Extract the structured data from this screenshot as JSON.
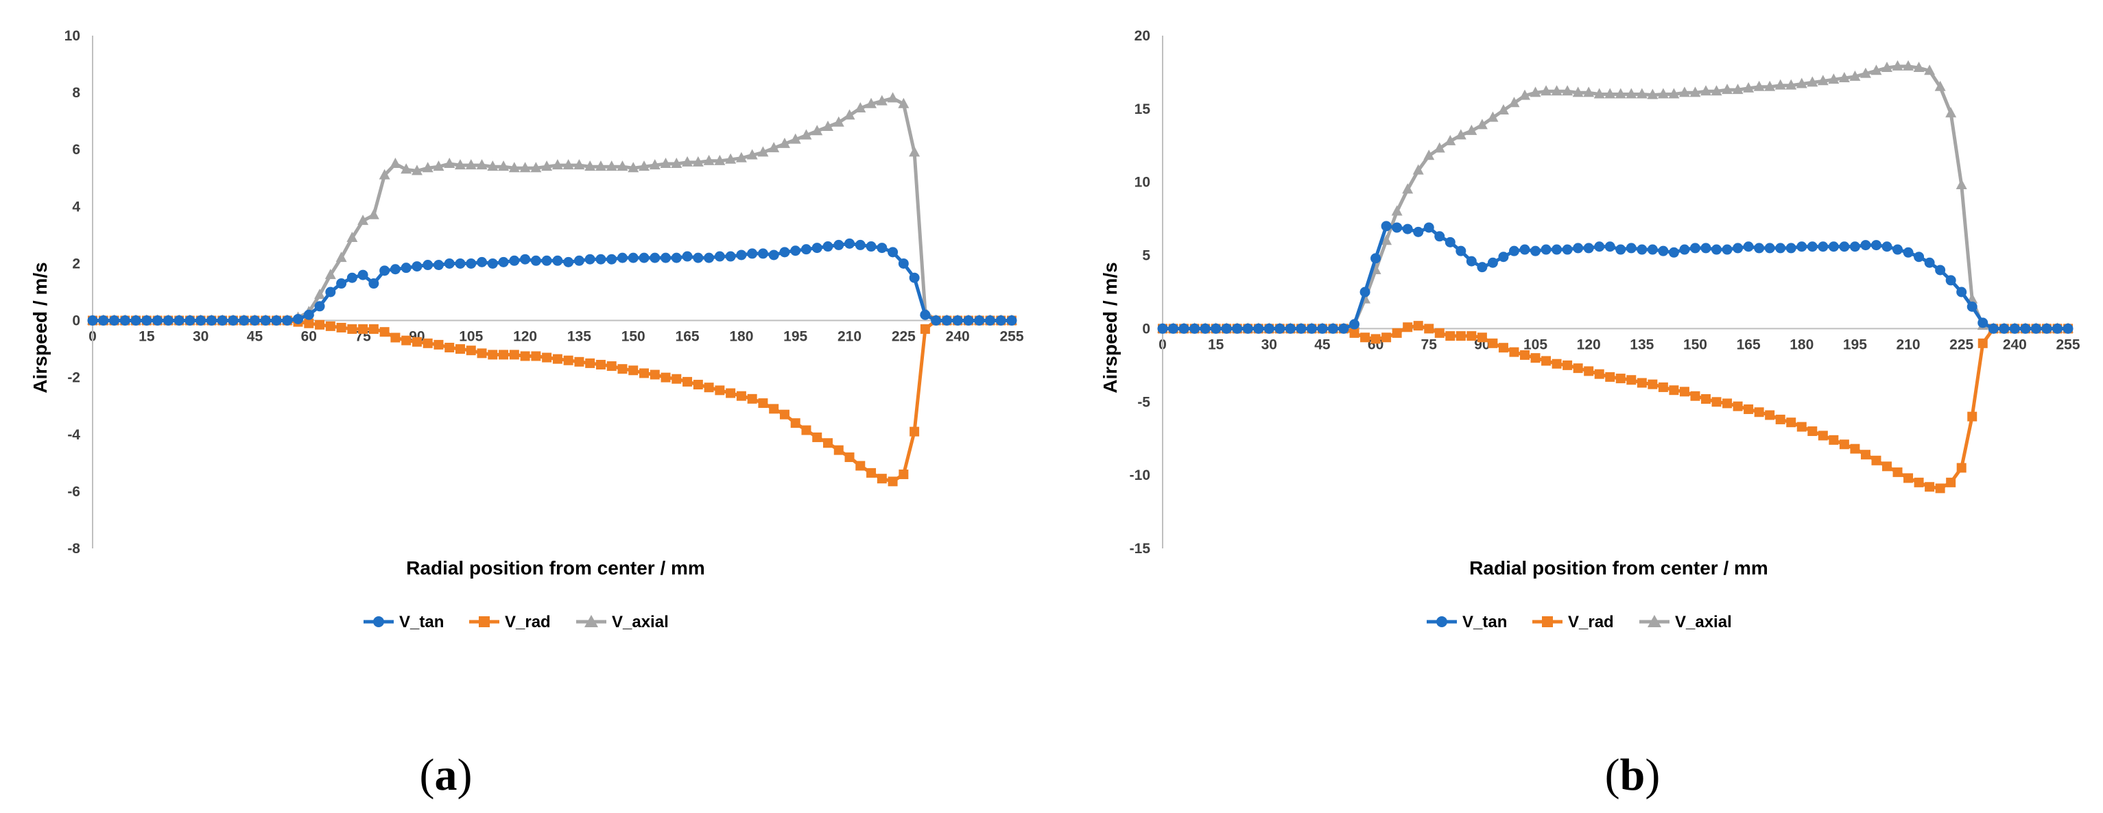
{
  "chart_data": [
    {
      "type": "line",
      "panel": "a",
      "panel_label": {
        "open": "(",
        "letter": "a",
        "close": ")"
      },
      "xlabel": "Radial position from center / mm",
      "ylabel": "Airspeed / m/s",
      "xlim": [
        0,
        255
      ],
      "ylim": [
        -8,
        10
      ],
      "xticks": [
        "0",
        "15",
        "30",
        "45",
        "60",
        "75",
        "90",
        "105",
        "120",
        "135",
        "150",
        "165",
        "180",
        "195",
        "210",
        "225",
        "240",
        "255"
      ],
      "yticks": [
        "-8",
        "-6",
        "-4",
        "-2",
        "0",
        "2",
        "4",
        "6",
        "8",
        "10"
      ],
      "grid": false,
      "legend": "bottom-center",
      "series": [
        {
          "name": "V_tan",
          "color": "#1f6fc4",
          "marker": "circle",
          "x": [
            0,
            3,
            6,
            9,
            12,
            15,
            18,
            21,
            24,
            27,
            30,
            33,
            36,
            39,
            42,
            45,
            48,
            51,
            54,
            57,
            60,
            63,
            66,
            69,
            72,
            75,
            78,
            81,
            84,
            87,
            90,
            93,
            96,
            99,
            102,
            105,
            108,
            111,
            114,
            117,
            120,
            123,
            126,
            129,
            132,
            135,
            138,
            141,
            144,
            147,
            150,
            153,
            156,
            159,
            162,
            165,
            168,
            171,
            174,
            177,
            180,
            183,
            186,
            189,
            192,
            195,
            198,
            201,
            204,
            207,
            210,
            213,
            216,
            219,
            222,
            225,
            228,
            231,
            234,
            237,
            240,
            243,
            246,
            249,
            252,
            255
          ],
          "y": [
            0,
            0,
            0,
            0,
            0,
            0,
            0,
            0,
            0,
            0,
            0,
            0,
            0,
            0,
            0,
            0,
            0,
            0,
            0,
            0.05,
            0.2,
            0.5,
            1.0,
            1.3,
            1.5,
            1.6,
            1.3,
            1.75,
            1.8,
            1.85,
            1.9,
            1.95,
            1.95,
            2.0,
            2.0,
            2.0,
            2.05,
            2.0,
            2.05,
            2.1,
            2.15,
            2.1,
            2.1,
            2.1,
            2.05,
            2.1,
            2.15,
            2.15,
            2.15,
            2.2,
            2.2,
            2.2,
            2.2,
            2.2,
            2.2,
            2.25,
            2.2,
            2.2,
            2.25,
            2.25,
            2.3,
            2.35,
            2.35,
            2.3,
            2.4,
            2.45,
            2.5,
            2.55,
            2.6,
            2.65,
            2.7,
            2.65,
            2.6,
            2.55,
            2.4,
            2.0,
            1.5,
            0.2,
            0,
            0,
            0,
            0,
            0,
            0,
            0,
            0
          ]
        },
        {
          "name": "V_rad",
          "color": "#f07f22",
          "marker": "square",
          "x": [
            0,
            3,
            6,
            9,
            12,
            15,
            18,
            21,
            24,
            27,
            30,
            33,
            36,
            39,
            42,
            45,
            48,
            51,
            54,
            57,
            60,
            63,
            66,
            69,
            72,
            75,
            78,
            81,
            84,
            87,
            90,
            93,
            96,
            99,
            102,
            105,
            108,
            111,
            114,
            117,
            120,
            123,
            126,
            129,
            132,
            135,
            138,
            141,
            144,
            147,
            150,
            153,
            156,
            159,
            162,
            165,
            168,
            171,
            174,
            177,
            180,
            183,
            186,
            189,
            192,
            195,
            198,
            201,
            204,
            207,
            210,
            213,
            216,
            219,
            222,
            225,
            228,
            231,
            234,
            237,
            240,
            243,
            246,
            249,
            252,
            255
          ],
          "y": [
            0,
            0,
            0,
            0,
            0,
            0,
            0,
            0,
            0,
            0,
            0,
            0,
            0,
            0,
            0,
            0,
            0,
            0,
            0,
            -0.05,
            -0.1,
            -0.15,
            -0.2,
            -0.25,
            -0.3,
            -0.3,
            -0.3,
            -0.4,
            -0.6,
            -0.7,
            -0.75,
            -0.8,
            -0.85,
            -0.95,
            -1.0,
            -1.05,
            -1.15,
            -1.2,
            -1.2,
            -1.2,
            -1.25,
            -1.25,
            -1.3,
            -1.35,
            -1.4,
            -1.45,
            -1.5,
            -1.55,
            -1.6,
            -1.7,
            -1.75,
            -1.85,
            -1.9,
            -2.0,
            -2.05,
            -2.15,
            -2.25,
            -2.35,
            -2.45,
            -2.55,
            -2.65,
            -2.75,
            -2.9,
            -3.1,
            -3.3,
            -3.6,
            -3.85,
            -4.1,
            -4.3,
            -4.55,
            -4.8,
            -5.1,
            -5.35,
            -5.55,
            -5.65,
            -5.4,
            -3.9,
            -0.3,
            0,
            0,
            0,
            0,
            0,
            0,
            0,
            0
          ]
        },
        {
          "name": "V_axial",
          "color": "#a5a5a5",
          "marker": "triangle",
          "x": [
            0,
            3,
            6,
            9,
            12,
            15,
            18,
            21,
            24,
            27,
            30,
            33,
            36,
            39,
            42,
            45,
            48,
            51,
            54,
            57,
            60,
            63,
            66,
            69,
            72,
            75,
            78,
            81,
            84,
            87,
            90,
            93,
            96,
            99,
            102,
            105,
            108,
            111,
            114,
            117,
            120,
            123,
            126,
            129,
            132,
            135,
            138,
            141,
            144,
            147,
            150,
            153,
            156,
            159,
            162,
            165,
            168,
            171,
            174,
            177,
            180,
            183,
            186,
            189,
            192,
            195,
            198,
            201,
            204,
            207,
            210,
            213,
            216,
            219,
            222,
            225,
            228,
            231,
            234,
            237,
            240,
            243,
            246,
            249,
            252,
            255
          ],
          "y": [
            0,
            0,
            0,
            0,
            0,
            0,
            0,
            0,
            0,
            0,
            0,
            0,
            0,
            0,
            0,
            0,
            0,
            0,
            0,
            0.1,
            0.3,
            0.9,
            1.6,
            2.2,
            2.9,
            3.5,
            3.7,
            5.1,
            5.5,
            5.3,
            5.25,
            5.35,
            5.4,
            5.5,
            5.45,
            5.45,
            5.45,
            5.4,
            5.4,
            5.35,
            5.35,
            5.35,
            5.4,
            5.45,
            5.45,
            5.45,
            5.4,
            5.4,
            5.4,
            5.4,
            5.35,
            5.4,
            5.45,
            5.5,
            5.5,
            5.55,
            5.55,
            5.6,
            5.6,
            5.65,
            5.7,
            5.8,
            5.9,
            6.05,
            6.2,
            6.35,
            6.5,
            6.65,
            6.8,
            6.95,
            7.2,
            7.45,
            7.6,
            7.7,
            7.8,
            7.6,
            5.9,
            0.3,
            0,
            0,
            0,
            0,
            0,
            0,
            0,
            0
          ]
        }
      ]
    },
    {
      "type": "line",
      "panel": "b",
      "panel_label": {
        "open": "(",
        "letter": "b",
        "close": ")"
      },
      "xlabel": "Radial position from center / mm",
      "ylabel": "Airspeed / m/s",
      "xlim": [
        0,
        255
      ],
      "ylim": [
        -15,
        20
      ],
      "xticks": [
        "0",
        "15",
        "30",
        "45",
        "60",
        "75",
        "90",
        "105",
        "120",
        "135",
        "150",
        "165",
        "180",
        "195",
        "210",
        "225",
        "240",
        "255"
      ],
      "yticks": [
        "-15",
        "-10",
        "-5",
        "0",
        "5",
        "10",
        "15",
        "20"
      ],
      "grid": false,
      "legend": "bottom-center",
      "series": [
        {
          "name": "V_tan",
          "color": "#1f6fc4",
          "marker": "circle",
          "x": [
            0,
            3,
            6,
            9,
            12,
            15,
            18,
            21,
            24,
            27,
            30,
            33,
            36,
            39,
            42,
            45,
            48,
            51,
            54,
            57,
            60,
            63,
            66,
            69,
            72,
            75,
            78,
            81,
            84,
            87,
            90,
            93,
            96,
            99,
            102,
            105,
            108,
            111,
            114,
            117,
            120,
            123,
            126,
            129,
            132,
            135,
            138,
            141,
            144,
            147,
            150,
            153,
            156,
            159,
            162,
            165,
            168,
            171,
            174,
            177,
            180,
            183,
            186,
            189,
            192,
            195,
            198,
            201,
            204,
            207,
            210,
            213,
            216,
            219,
            222,
            225,
            228,
            231,
            234,
            237,
            240,
            243,
            246,
            249,
            252,
            255
          ],
          "y": [
            0,
            0,
            0,
            0,
            0,
            0,
            0,
            0,
            0,
            0,
            0,
            0,
            0,
            0,
            0,
            0,
            0,
            0,
            0.3,
            2.5,
            4.8,
            7.0,
            6.9,
            6.8,
            6.6,
            6.9,
            6.3,
            5.9,
            5.3,
            4.6,
            4.2,
            4.5,
            4.9,
            5.3,
            5.4,
            5.3,
            5.4,
            5.4,
            5.4,
            5.5,
            5.5,
            5.6,
            5.6,
            5.4,
            5.5,
            5.4,
            5.4,
            5.3,
            5.2,
            5.4,
            5.5,
            5.5,
            5.4,
            5.4,
            5.5,
            5.6,
            5.5,
            5.5,
            5.5,
            5.5,
            5.6,
            5.6,
            5.6,
            5.6,
            5.6,
            5.6,
            5.7,
            5.7,
            5.6,
            5.4,
            5.2,
            4.9,
            4.5,
            4.0,
            3.3,
            2.5,
            1.5,
            0.4,
            0,
            0,
            0,
            0,
            0,
            0,
            0,
            0
          ]
        },
        {
          "name": "V_rad",
          "color": "#f07f22",
          "marker": "square",
          "x": [
            0,
            3,
            6,
            9,
            12,
            15,
            18,
            21,
            24,
            27,
            30,
            33,
            36,
            39,
            42,
            45,
            48,
            51,
            54,
            57,
            60,
            63,
            66,
            69,
            72,
            75,
            78,
            81,
            84,
            87,
            90,
            93,
            96,
            99,
            102,
            105,
            108,
            111,
            114,
            117,
            120,
            123,
            126,
            129,
            132,
            135,
            138,
            141,
            144,
            147,
            150,
            153,
            156,
            159,
            162,
            165,
            168,
            171,
            174,
            177,
            180,
            183,
            186,
            189,
            192,
            195,
            198,
            201,
            204,
            207,
            210,
            213,
            216,
            219,
            222,
            225,
            228,
            231,
            234,
            237,
            240,
            243,
            246,
            249,
            252,
            255
          ],
          "y": [
            0,
            0,
            0,
            0,
            0,
            0,
            0,
            0,
            0,
            0,
            0,
            0,
            0,
            0,
            0,
            0,
            0,
            0,
            -0.3,
            -0.6,
            -0.7,
            -0.6,
            -0.3,
            0.1,
            0.2,
            0,
            -0.3,
            -0.5,
            -0.5,
            -0.5,
            -0.6,
            -1.0,
            -1.3,
            -1.6,
            -1.8,
            -2.0,
            -2.2,
            -2.4,
            -2.5,
            -2.7,
            -2.9,
            -3.1,
            -3.3,
            -3.4,
            -3.5,
            -3.7,
            -3.8,
            -4.0,
            -4.2,
            -4.3,
            -4.6,
            -4.8,
            -5.0,
            -5.1,
            -5.3,
            -5.5,
            -5.7,
            -5.9,
            -6.2,
            -6.4,
            -6.7,
            -7.0,
            -7.3,
            -7.6,
            -7.9,
            -8.2,
            -8.6,
            -9.0,
            -9.4,
            -9.8,
            -10.2,
            -10.5,
            -10.8,
            -10.9,
            -10.5,
            -9.5,
            -6.0,
            -1.0,
            0,
            0,
            0,
            0,
            0,
            0,
            0,
            0
          ]
        },
        {
          "name": "V_axial",
          "color": "#a5a5a5",
          "marker": "triangle",
          "x": [
            0,
            3,
            6,
            9,
            12,
            15,
            18,
            21,
            24,
            27,
            30,
            33,
            36,
            39,
            42,
            45,
            48,
            51,
            54,
            57,
            60,
            63,
            66,
            69,
            72,
            75,
            78,
            81,
            84,
            87,
            90,
            93,
            96,
            99,
            102,
            105,
            108,
            111,
            114,
            117,
            120,
            123,
            126,
            129,
            132,
            135,
            138,
            141,
            144,
            147,
            150,
            153,
            156,
            159,
            162,
            165,
            168,
            171,
            174,
            177,
            180,
            183,
            186,
            189,
            192,
            195,
            198,
            201,
            204,
            207,
            210,
            213,
            216,
            219,
            222,
            225,
            228,
            231,
            234,
            237,
            240,
            243,
            246,
            249,
            252,
            255
          ],
          "y": [
            0,
            0,
            0,
            0,
            0,
            0,
            0,
            0,
            0,
            0,
            0,
            0,
            0,
            0,
            0,
            0,
            0,
            0,
            0.3,
            2.0,
            4.0,
            6.0,
            8.0,
            9.5,
            10.8,
            11.8,
            12.3,
            12.8,
            13.2,
            13.5,
            13.9,
            14.4,
            14.9,
            15.4,
            15.9,
            16.1,
            16.2,
            16.2,
            16.2,
            16.1,
            16.1,
            16.0,
            16.0,
            16.0,
            16.0,
            16.0,
            15.95,
            16.0,
            16.0,
            16.1,
            16.1,
            16.2,
            16.2,
            16.3,
            16.3,
            16.4,
            16.5,
            16.5,
            16.6,
            16.6,
            16.7,
            16.8,
            16.9,
            17.0,
            17.1,
            17.2,
            17.4,
            17.6,
            17.8,
            17.9,
            17.9,
            17.8,
            17.6,
            16.5,
            14.7,
            9.8,
            2.0,
            0.2,
            0,
            0,
            0,
            0,
            0,
            0,
            0,
            0
          ]
        }
      ]
    }
  ]
}
